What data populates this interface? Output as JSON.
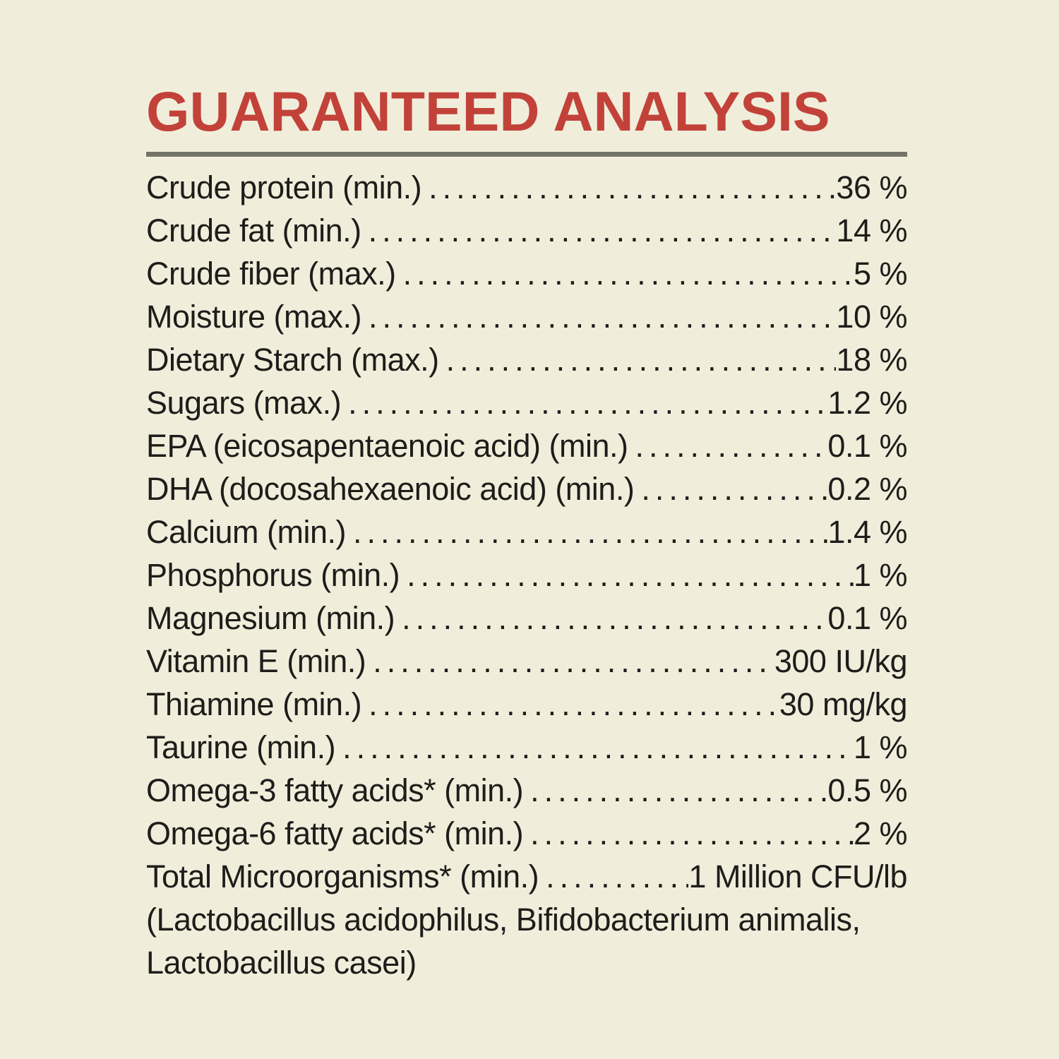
{
  "analysis": {
    "title": "GUARANTEED ANALYSIS",
    "rows": [
      {
        "name": "Crude protein (min.)",
        "value": "36 %"
      },
      {
        "name": "Crude fat (min.)",
        "value": "14 %"
      },
      {
        "name": "Crude fiber (max.)",
        "value": "5 %"
      },
      {
        "name": "Moisture (max.)",
        "value": "10 %"
      },
      {
        "name": "Dietary Starch (max.)",
        "value": "18 %"
      },
      {
        "name": "Sugars (max.)",
        "value": "1.2 %"
      },
      {
        "name": "EPA (eicosapentaenoic acid) (min.)",
        "value": "0.1 %"
      },
      {
        "name": "DHA (docosahexaenoic acid) (min.)",
        "value": "0.2 %"
      },
      {
        "name": "Calcium (min.)",
        "value": "1.4 %"
      },
      {
        "name": "Phosphorus (min.)",
        "value": "1 %"
      },
      {
        "name": "Magnesium (min.)",
        "value": "0.1 %"
      },
      {
        "name": "Vitamin E (min.)",
        "value": "300 IU/kg"
      },
      {
        "name": "Thiamine (min.)",
        "value": "30 mg/kg"
      },
      {
        "name": "Taurine (min.)",
        "value": "1 %"
      },
      {
        "name": "Omega-3 fatty acids* (min.)",
        "value": "0.5 %"
      },
      {
        "name": "Omega-6 fatty acids* (min.)",
        "value": "2 %"
      },
      {
        "name": "Total Microorganisms* (min.)",
        "value": "1 Million CFU/lb"
      }
    ],
    "footnote_lines": [
      "(Lactobacillus acidophilus, Bifidobacterium animalis,",
      "Lactobacillus casei)"
    ],
    "colors": {
      "background": "#f0eedb",
      "heading": "#c2423a",
      "rule": "#73736a",
      "text": "#1e1d1a"
    }
  }
}
